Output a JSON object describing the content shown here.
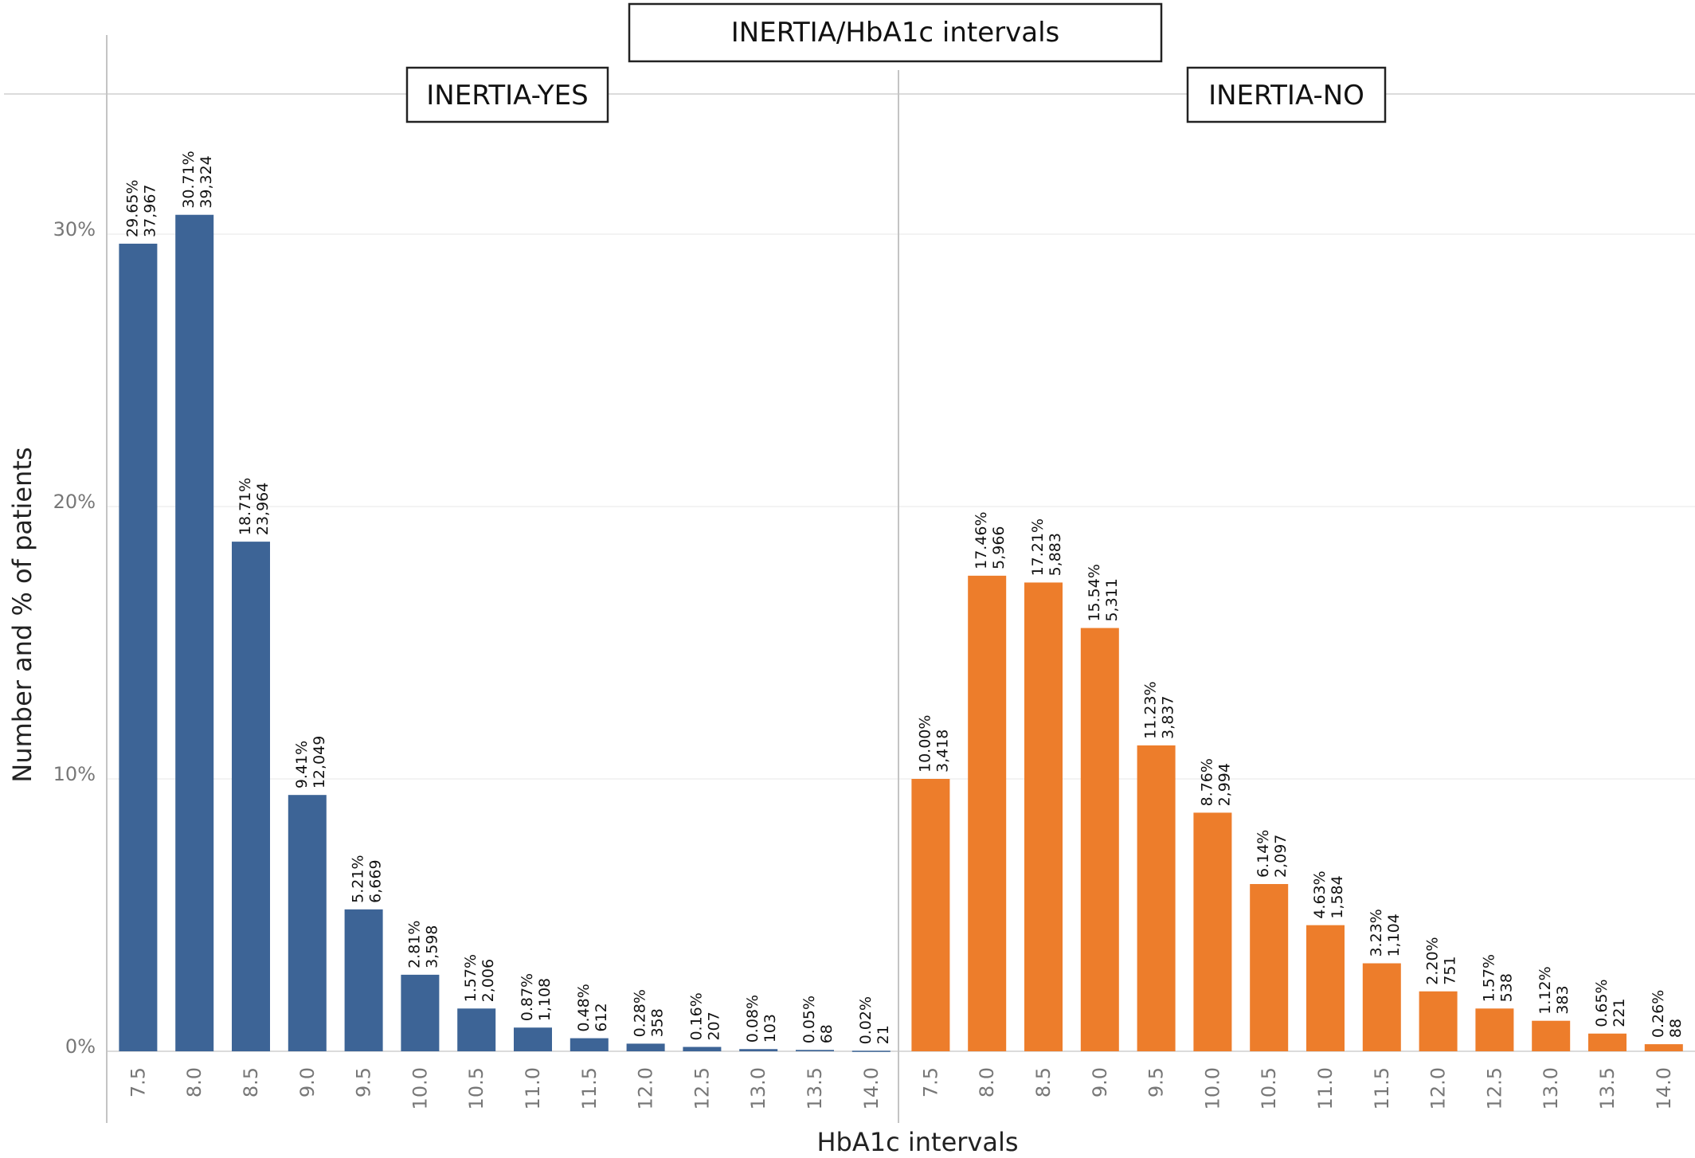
{
  "chart_data": {
    "type": "bar",
    "title": "INERTIA/HbA1c intervals",
    "xlabel": "HbA1c intervals",
    "ylabel": "Number and % of patients",
    "ylim": [
      0,
      35
    ],
    "yticks": [
      "0%",
      "10%",
      "20%",
      "30%"
    ],
    "yticks_values": [
      0,
      10,
      20,
      30
    ],
    "categories": [
      "7.5",
      "8.0",
      "8.5",
      "9.0",
      "9.5",
      "10.0",
      "10.5",
      "11.0",
      "11.5",
      "12.0",
      "12.5",
      "13.0",
      "13.5",
      "14.0"
    ],
    "grid": true,
    "panels": [
      {
        "name": "INERTIA-YES",
        "color": "#3d6496",
        "values": [
          29.65,
          30.71,
          18.71,
          9.41,
          5.21,
          2.81,
          1.57,
          0.87,
          0.48,
          0.28,
          0.16,
          0.08,
          0.05,
          0.02
        ],
        "percent_labels": [
          "29.65%",
          "30.71%",
          "18.71%",
          "9.41%",
          "5.21%",
          "2.81%",
          "1.57%",
          "0.87%",
          "0.48%",
          "0.28%",
          "0.16%",
          "0.08%",
          "0.05%",
          "0.02%"
        ],
        "count_labels": [
          "37,967",
          "39,324",
          "23,964",
          "12,049",
          "6,669",
          "3,598",
          "2,006",
          "1,108",
          "612",
          "358",
          "207",
          "103",
          "68",
          "21"
        ]
      },
      {
        "name": "INERTIA-NO",
        "color": "#ed7d2b",
        "values": [
          10.0,
          17.46,
          17.21,
          15.54,
          11.23,
          8.76,
          6.14,
          4.63,
          3.23,
          2.2,
          1.57,
          1.12,
          0.65,
          0.26
        ],
        "percent_labels": [
          "10.00%",
          "17.46%",
          "17.21%",
          "15.54%",
          "11.23%",
          "8.76%",
          "6.14%",
          "4.63%",
          "3.23%",
          "2.20%",
          "1.57%",
          "1.12%",
          "0.65%",
          "0.26%"
        ],
        "count_labels": [
          "3,418",
          "5,966",
          "5,883",
          "5,311",
          "3,837",
          "2,994",
          "2,097",
          "1,584",
          "1,104",
          "751",
          "538",
          "383",
          "221",
          "88"
        ]
      }
    ]
  }
}
